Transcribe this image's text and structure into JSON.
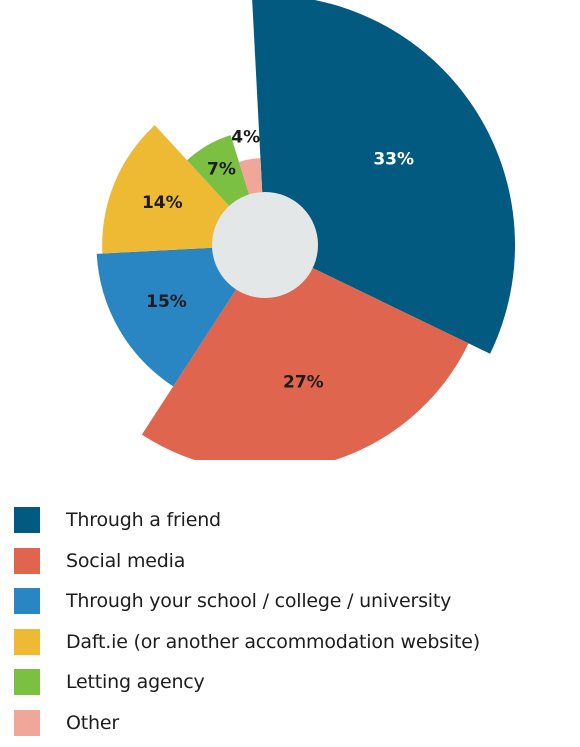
{
  "chart_data": {
    "type": "pie",
    "variant": "polar-area-donut",
    "title": "",
    "categories": [
      "Through a friend",
      "Social media",
      "Through your school / college / university",
      "Daft.ie (or another accommodation website)",
      "Letting agency",
      "Other"
    ],
    "values": [
      33,
      27,
      15,
      14,
      7,
      4
    ],
    "labels": [
      "33%",
      "27%",
      "15%",
      "14%",
      "7%",
      "4%"
    ],
    "colors": [
      "#035a80",
      "#e0654e",
      "#2a86c2",
      "#eeba34",
      "#7bc043",
      "#f0a79a"
    ],
    "label_colors": [
      "#ffffff",
      "#1d1d1d",
      "#1d1d1d",
      "#1d1d1d",
      "#1d1d1d",
      "#1d1d1d"
    ],
    "center_color": "#e4e7e7",
    "legend_position": "bottom"
  }
}
